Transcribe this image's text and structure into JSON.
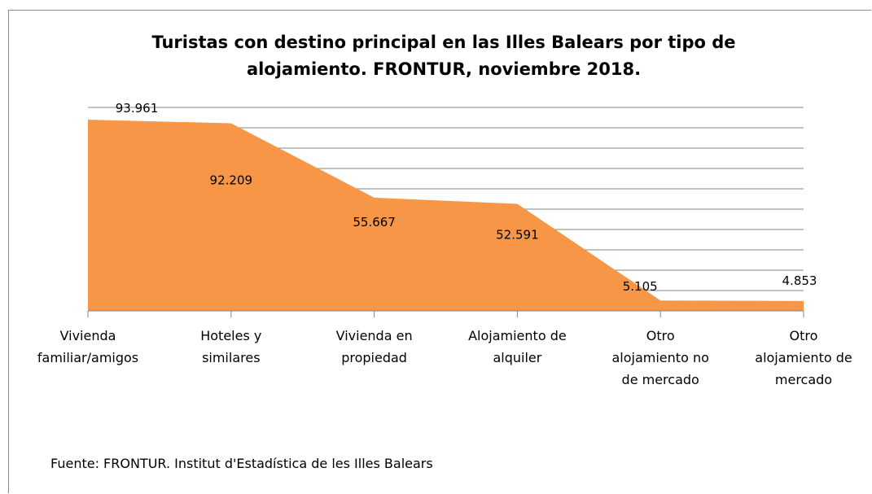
{
  "chart_data": {
    "type": "area",
    "title": "Turistas con destino principal en las Illes Balears por tipo de alojamiento. FRONTUR, noviembre 2018.",
    "categories": [
      "Vivienda\nfamiliar/amigos",
      "Hoteles y\nsimilares",
      "Vivienda en\npropiedad",
      "Alojamiento de\nalquiler",
      "Otro\nalojamiento no\nde mercado",
      "Otro\nalojamiento de\nmercado"
    ],
    "values": [
      93961,
      92209,
      55667,
      52591,
      5105,
      4853
    ],
    "value_labels": [
      "93.961",
      "92.209",
      "55.667",
      "52.591",
      "5.105",
      "4.853"
    ],
    "color": "#f79646",
    "ylim": [
      0,
      100000
    ],
    "yticks": [
      0,
      10000,
      20000,
      30000,
      40000,
      50000,
      60000,
      70000,
      80000,
      90000,
      100000
    ],
    "grid": true,
    "source": "Fuente: FRONTUR. Institut d'Estadística de les Illes Balears"
  }
}
